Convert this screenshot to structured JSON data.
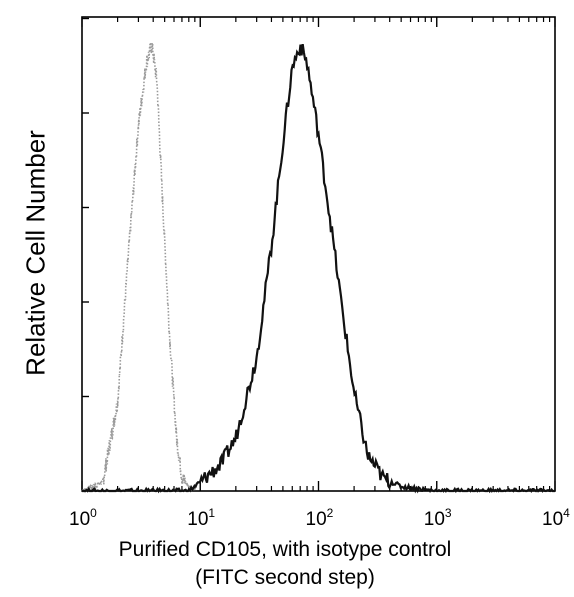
{
  "chart_data": {
    "type": "line",
    "x_scale": "log",
    "xlim": [
      1,
      10000
    ],
    "xticks": [
      {
        "base": "10",
        "exp": "0"
      },
      {
        "base": "10",
        "exp": "1"
      },
      {
        "base": "10",
        "exp": "2"
      },
      {
        "base": "10",
        "exp": "3"
      },
      {
        "base": "10",
        "exp": "4"
      }
    ],
    "ylabel": "Relative Cell Number",
    "xlabel_line1": "Purified CD105, with isotype control",
    "xlabel_line2": "(FITC second step)",
    "series": [
      {
        "style": "dotted",
        "color": "#9a9a9a",
        "x": [
          1.0,
          1.5,
          2.0,
          2.5,
          3.0,
          3.5,
          3.9,
          4.3,
          4.8,
          5.5,
          6.3,
          7.0,
          8.0,
          9.0
        ],
        "y": [
          0.0,
          0.02,
          0.2,
          0.55,
          0.82,
          0.96,
          1.0,
          0.92,
          0.65,
          0.35,
          0.12,
          0.03,
          0.01,
          0.0
        ]
      },
      {
        "style": "solid",
        "color": "#111111",
        "x": [
          1.0,
          5.0,
          8.0,
          10.0,
          15.0,
          20.0,
          30.0,
          40.0,
          50.0,
          60.0,
          70.0,
          80.0,
          100.0,
          130.0,
          160.0,
          200.0,
          260.0,
          350.0,
          500.0,
          1000.0,
          3000.0,
          10000.0
        ],
        "y": [
          0.0,
          0.0,
          0.0,
          0.02,
          0.06,
          0.12,
          0.3,
          0.55,
          0.78,
          0.95,
          1.0,
          0.96,
          0.8,
          0.58,
          0.4,
          0.22,
          0.08,
          0.03,
          0.01,
          0.0,
          0.0,
          0.0
        ]
      }
    ]
  }
}
